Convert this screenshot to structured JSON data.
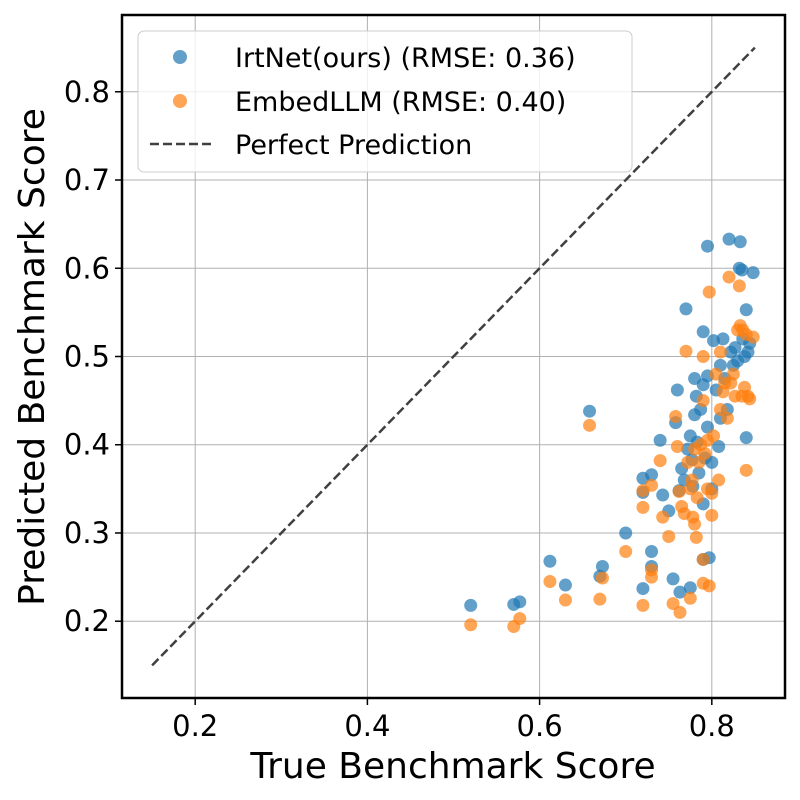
{
  "chart_data": {
    "type": "scatter",
    "xlabel": "True Benchmark Score",
    "ylabel": "Predicted Benchmark Score",
    "xlim": [
      0.115,
      0.885
    ],
    "ylim": [
      0.113,
      0.887
    ],
    "xticks": [
      "0.2",
      "0.4",
      "0.6",
      "0.8"
    ],
    "yticks": [
      "0.2",
      "0.3",
      "0.4",
      "0.5",
      "0.6",
      "0.7",
      "0.8"
    ],
    "grid": true,
    "legend_position": "top-left",
    "series": [
      {
        "name": "IrtNet(ours) (RMSE: 0.36)",
        "color": "#1f77b4",
        "points": [
          [
            0.52,
            0.218
          ],
          [
            0.57,
            0.219
          ],
          [
            0.577,
            0.222
          ],
          [
            0.612,
            0.268
          ],
          [
            0.63,
            0.241
          ],
          [
            0.658,
            0.438
          ],
          [
            0.67,
            0.251
          ],
          [
            0.673,
            0.262
          ],
          [
            0.7,
            0.3
          ],
          [
            0.72,
            0.237
          ],
          [
            0.72,
            0.362
          ],
          [
            0.72,
            0.346
          ],
          [
            0.73,
            0.279
          ],
          [
            0.73,
            0.262
          ],
          [
            0.73,
            0.366
          ],
          [
            0.74,
            0.405
          ],
          [
            0.743,
            0.343
          ],
          [
            0.75,
            0.325
          ],
          [
            0.755,
            0.248
          ],
          [
            0.758,
            0.425
          ],
          [
            0.76,
            0.462
          ],
          [
            0.762,
            0.348
          ],
          [
            0.763,
            0.233
          ],
          [
            0.765,
            0.373
          ],
          [
            0.768,
            0.36
          ],
          [
            0.77,
            0.554
          ],
          [
            0.772,
            0.395
          ],
          [
            0.775,
            0.238
          ],
          [
            0.775,
            0.41
          ],
          [
            0.777,
            0.383
          ],
          [
            0.778,
            0.353
          ],
          [
            0.78,
            0.475
          ],
          [
            0.78,
            0.434
          ],
          [
            0.782,
            0.455
          ],
          [
            0.783,
            0.403
          ],
          [
            0.785,
            0.368
          ],
          [
            0.787,
            0.44
          ],
          [
            0.79,
            0.528
          ],
          [
            0.79,
            0.468
          ],
          [
            0.79,
            0.333
          ],
          [
            0.79,
            0.27
          ],
          [
            0.792,
            0.385
          ],
          [
            0.795,
            0.478
          ],
          [
            0.795,
            0.42
          ],
          [
            0.795,
            0.625
          ],
          [
            0.797,
            0.272
          ],
          [
            0.8,
            0.35
          ],
          [
            0.8,
            0.38
          ],
          [
            0.802,
            0.518
          ],
          [
            0.805,
            0.462
          ],
          [
            0.808,
            0.398
          ],
          [
            0.81,
            0.49
          ],
          [
            0.81,
            0.43
          ],
          [
            0.813,
            0.52
          ],
          [
            0.815,
            0.475
          ],
          [
            0.818,
            0.44
          ],
          [
            0.82,
            0.633
          ],
          [
            0.822,
            0.505
          ],
          [
            0.825,
            0.49
          ],
          [
            0.827,
            0.51
          ],
          [
            0.83,
            0.495
          ],
          [
            0.832,
            0.6
          ],
          [
            0.833,
            0.63
          ],
          [
            0.835,
            0.598
          ],
          [
            0.836,
            0.52
          ],
          [
            0.838,
            0.5
          ],
          [
            0.84,
            0.553
          ],
          [
            0.84,
            0.408
          ],
          [
            0.842,
            0.505
          ],
          [
            0.844,
            0.515
          ],
          [
            0.848,
            0.595
          ]
        ]
      },
      {
        "name": "EmbedLLM (RMSE: 0.40)",
        "color": "#ff7f0e",
        "points": [
          [
            0.52,
            0.196
          ],
          [
            0.57,
            0.194
          ],
          [
            0.577,
            0.203
          ],
          [
            0.612,
            0.245
          ],
          [
            0.63,
            0.224
          ],
          [
            0.658,
            0.422
          ],
          [
            0.67,
            0.225
          ],
          [
            0.673,
            0.249
          ],
          [
            0.7,
            0.279
          ],
          [
            0.72,
            0.218
          ],
          [
            0.72,
            0.348
          ],
          [
            0.72,
            0.329
          ],
          [
            0.73,
            0.258
          ],
          [
            0.73,
            0.25
          ],
          [
            0.73,
            0.354
          ],
          [
            0.74,
            0.382
          ],
          [
            0.743,
            0.318
          ],
          [
            0.75,
            0.296
          ],
          [
            0.755,
            0.22
          ],
          [
            0.758,
            0.432
          ],
          [
            0.76,
            0.398
          ],
          [
            0.762,
            0.347
          ],
          [
            0.763,
            0.21
          ],
          [
            0.765,
            0.33
          ],
          [
            0.768,
            0.322
          ],
          [
            0.77,
            0.506
          ],
          [
            0.772,
            0.38
          ],
          [
            0.775,
            0.226
          ],
          [
            0.775,
            0.35
          ],
          [
            0.777,
            0.36
          ],
          [
            0.778,
            0.318
          ],
          [
            0.78,
            0.395
          ],
          [
            0.78,
            0.31
          ],
          [
            0.782,
            0.295
          ],
          [
            0.783,
            0.34
          ],
          [
            0.785,
            0.38
          ],
          [
            0.787,
            0.4
          ],
          [
            0.79,
            0.5
          ],
          [
            0.79,
            0.45
          ],
          [
            0.79,
            0.243
          ],
          [
            0.79,
            0.27
          ],
          [
            0.792,
            0.39
          ],
          [
            0.795,
            0.405
          ],
          [
            0.795,
            0.35
          ],
          [
            0.797,
            0.573
          ],
          [
            0.797,
            0.24
          ],
          [
            0.8,
            0.345
          ],
          [
            0.8,
            0.32
          ],
          [
            0.802,
            0.41
          ],
          [
            0.805,
            0.48
          ],
          [
            0.808,
            0.36
          ],
          [
            0.81,
            0.505
          ],
          [
            0.81,
            0.44
          ],
          [
            0.813,
            0.46
          ],
          [
            0.815,
            0.47
          ],
          [
            0.818,
            0.43
          ],
          [
            0.82,
            0.59
          ],
          [
            0.822,
            0.47
          ],
          [
            0.825,
            0.48
          ],
          [
            0.827,
            0.455
          ],
          [
            0.83,
            0.53
          ],
          [
            0.832,
            0.58
          ],
          [
            0.833,
            0.535
          ],
          [
            0.835,
            0.455
          ],
          [
            0.836,
            0.53
          ],
          [
            0.838,
            0.465
          ],
          [
            0.84,
            0.525
          ],
          [
            0.84,
            0.371
          ],
          [
            0.842,
            0.455
          ],
          [
            0.844,
            0.452
          ],
          [
            0.848,
            0.522
          ]
        ]
      }
    ],
    "reference_line": {
      "name": "Perfect Prediction",
      "color": "#404040",
      "from": [
        0.15,
        0.15
      ],
      "to": [
        0.85,
        0.85
      ]
    }
  }
}
